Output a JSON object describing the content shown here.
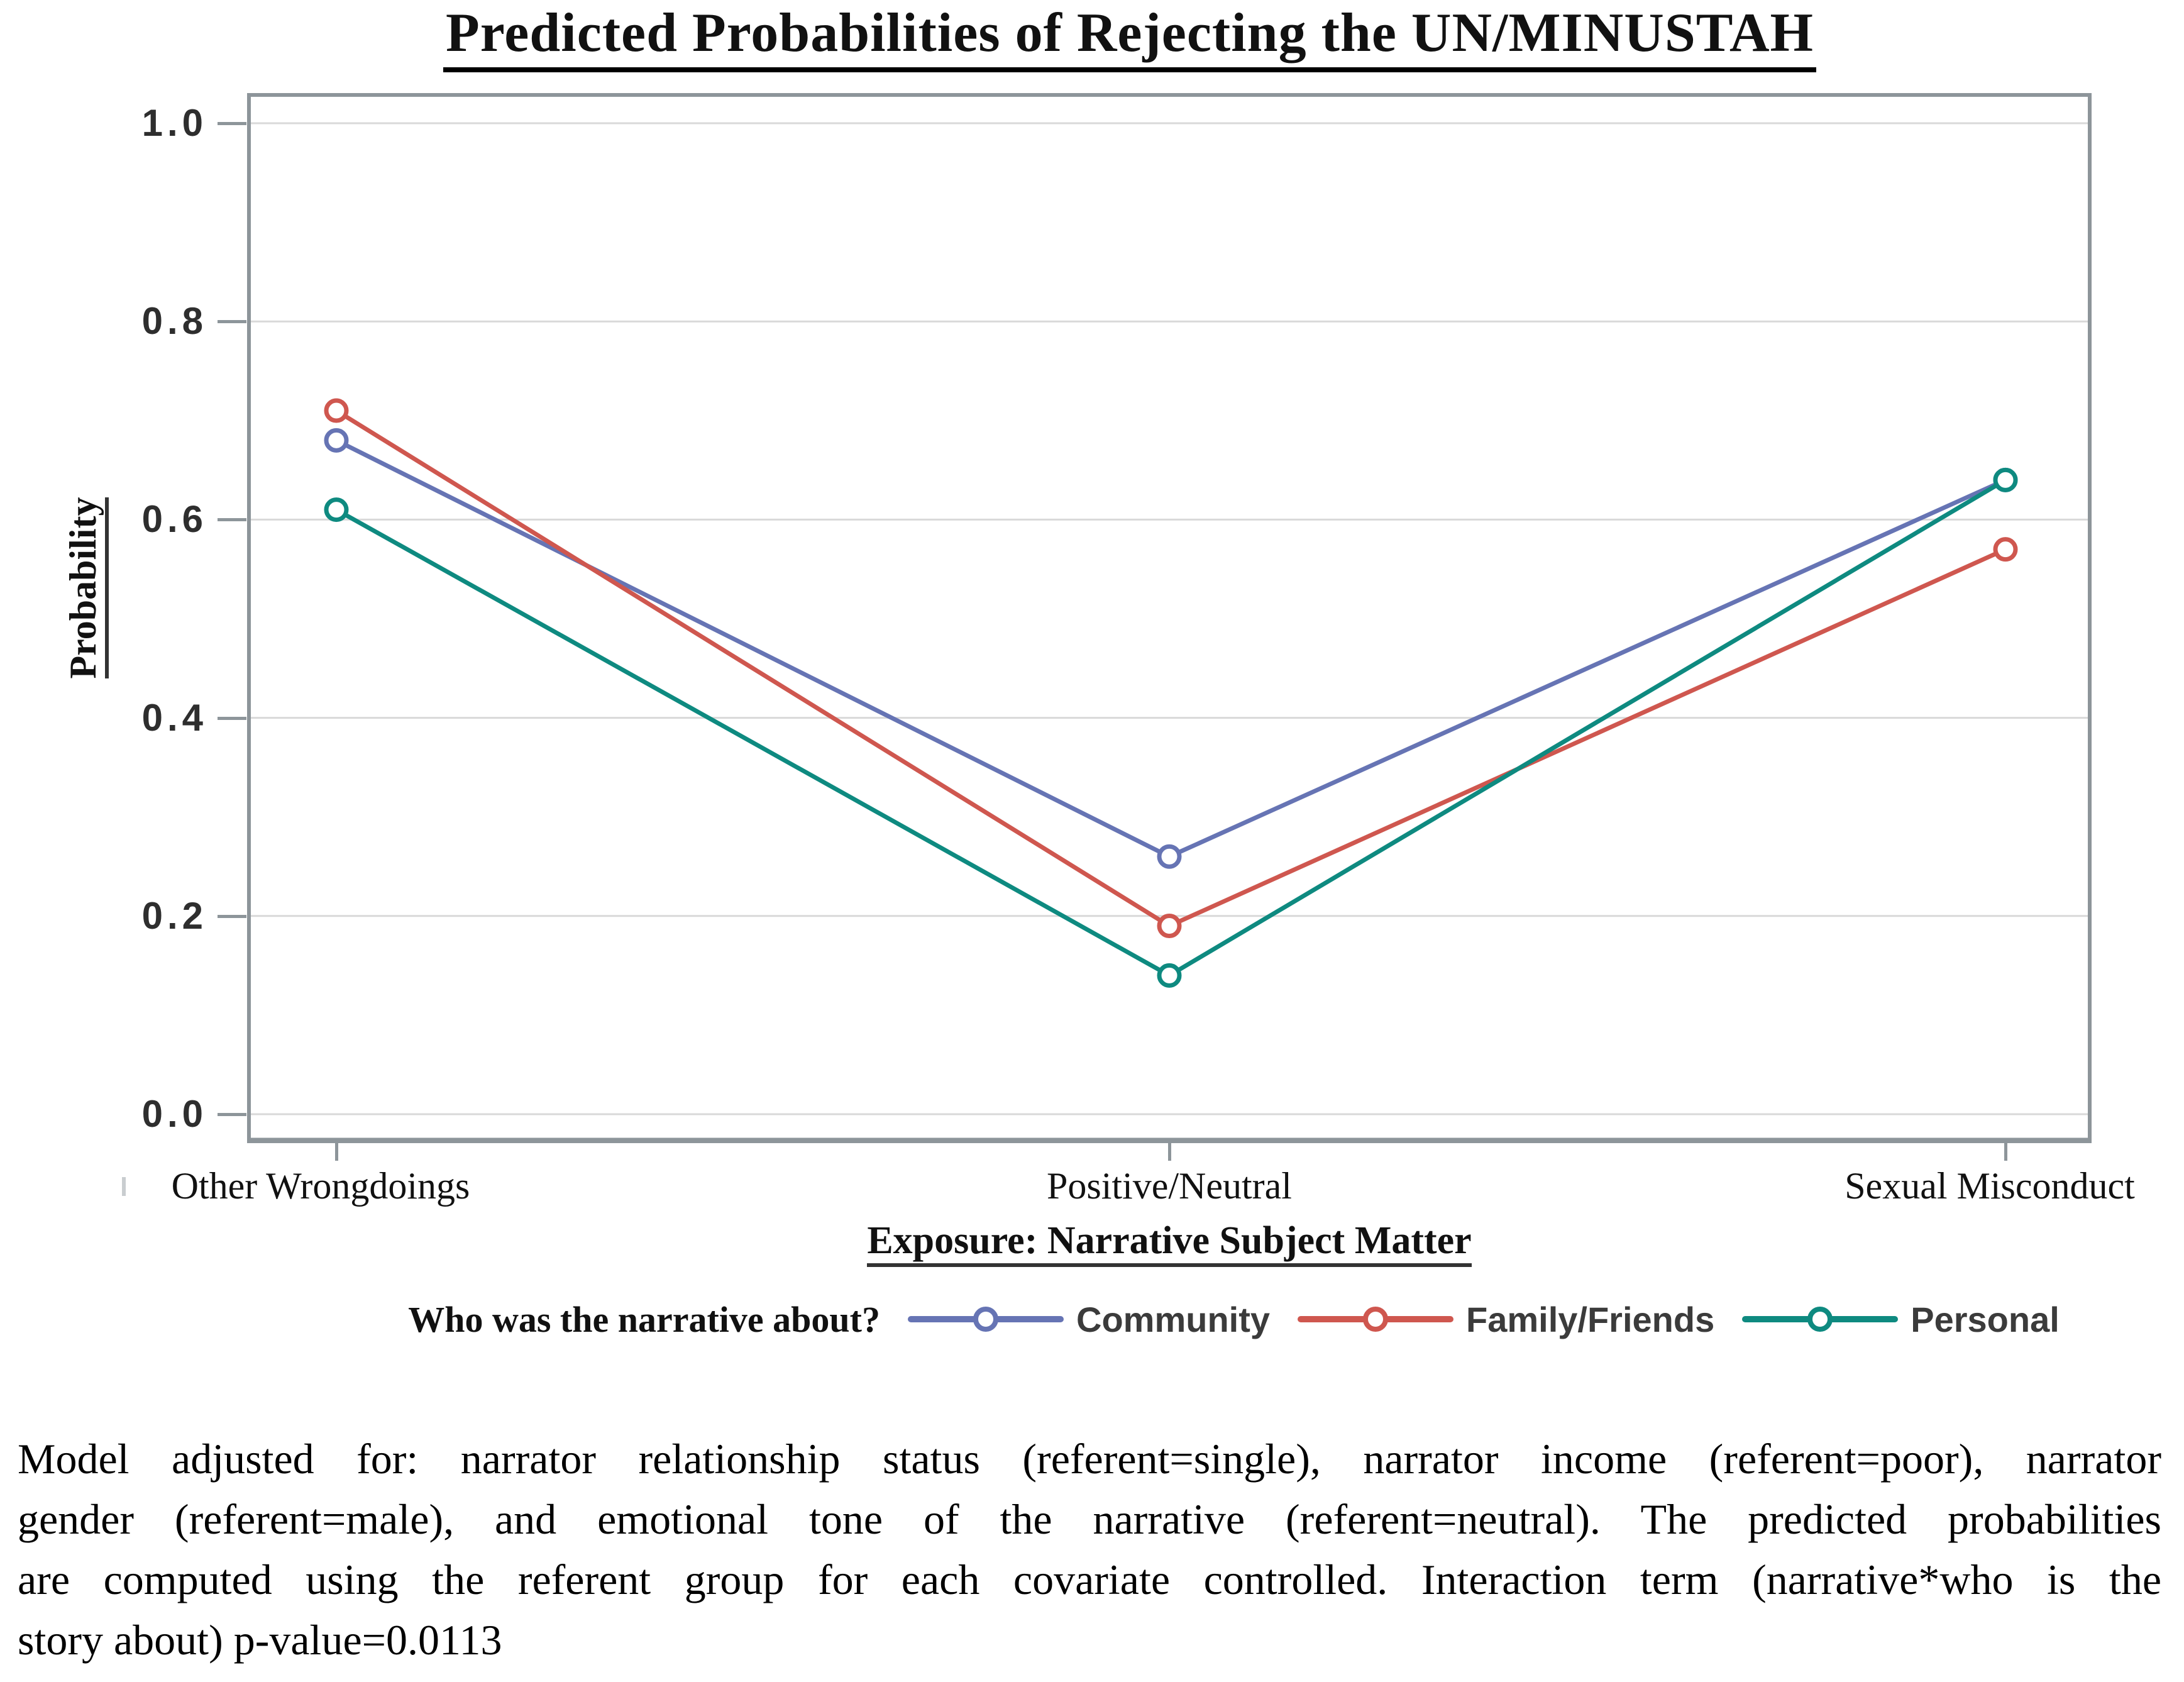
{
  "chart": {
    "title": "Predicted Probabilities of Rejecting the UN/MINUSTAH"
  },
  "chart_data": {
    "type": "line",
    "title": "Predicted Probabilities of Rejecting the UN/MINUSTAH",
    "categories": [
      "Other Wrongdoings",
      "Positive/Neutral",
      "Sexual Misconduct"
    ],
    "series": [
      {
        "name": "Community",
        "color": "#6674b4",
        "values": [
          0.68,
          0.26,
          0.64
        ]
      },
      {
        "name": "Family/Friends",
        "color": "#cf574f",
        "values": [
          0.71,
          0.19,
          0.57
        ]
      },
      {
        "name": "Personal",
        "color": "#0e8a80",
        "values": [
          0.61,
          0.14,
          0.64
        ]
      }
    ],
    "xlabel": "Exposure: Narrative Subject Matter",
    "ylabel": "Probability",
    "ylim": [
      0.0,
      1.0
    ],
    "yticks": [
      0.0,
      0.2,
      0.4,
      0.6,
      0.8,
      1.0
    ],
    "grid": true,
    "marker": "open-circle",
    "legend_label": "Who was the narrative about?",
    "legend_position": "bottom",
    "colors": {
      "frame": "#8d959a",
      "gridline": "#d9d9d9",
      "tick_text": "#2e2e2e"
    }
  },
  "footnote": {
    "lines": [
      "Model adjusted for: narrator relationship status (referent=single), narrator income (referent=poor), narrator",
      "gender (referent=male), and emotional tone of the narrative (referent=neutral). The predicted probabilities",
      "are computed using the referent group for each covariate controlled. Interaction term (narrative*who is the",
      "story about) p-value=0.0113"
    ]
  }
}
